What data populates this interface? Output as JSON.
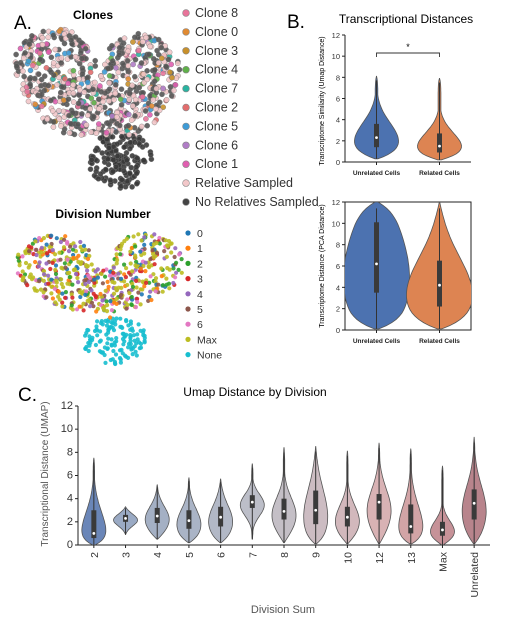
{
  "panels": {
    "a": "A.",
    "b": "B.",
    "c": "C."
  },
  "scatter_clones": {
    "title": "Clones",
    "legend": [
      {
        "label": "Clone 8",
        "color": "#e8749a"
      },
      {
        "label": "Clone 0",
        "color": "#e08a32"
      },
      {
        "label": "Clone 3",
        "color": "#c8902a"
      },
      {
        "label": "Clone 4",
        "color": "#5fb04a"
      },
      {
        "label": "Clone 7",
        "color": "#2ab3a0"
      },
      {
        "label": "Clone 2",
        "color": "#e26d6d"
      },
      {
        "label": "Clone 5",
        "color": "#3e9bd6"
      },
      {
        "label": "Clone 6",
        "color": "#b07cc6"
      },
      {
        "label": "Clone 1",
        "color": "#e05fb0"
      },
      {
        "label": "Relative Sampled",
        "color": "#f2c7c9"
      },
      {
        "label": "No Relatives Sampled",
        "color": "#444444"
      }
    ]
  },
  "scatter_division": {
    "title": "Division Number",
    "legend": [
      {
        "label": "0",
        "color": "#1f77b4"
      },
      {
        "label": "1",
        "color": "#ff7f0e"
      },
      {
        "label": "2",
        "color": "#2ca02c"
      },
      {
        "label": "3",
        "color": "#d62728"
      },
      {
        "label": "4",
        "color": "#9467bd"
      },
      {
        "label": "5",
        "color": "#8c564b"
      },
      {
        "label": "6",
        "color": "#e377c2"
      },
      {
        "label": "Max",
        "color": "#bcbd22"
      },
      {
        "label": "None",
        "color": "#17becf"
      }
    ]
  },
  "chart_data": [
    {
      "type": "violin",
      "title": "Transcriptional Distances",
      "ylabel": "Transcriptome Similarity (Umap Distance)",
      "ylim": [
        0,
        12
      ],
      "yticks": [
        "0",
        "2",
        "4",
        "6",
        "8",
        "10",
        "12"
      ],
      "categories": [
        "Unrelated Cells",
        "Related Cells"
      ],
      "colors": [
        "#4c72b0",
        "#dd8452"
      ],
      "significance": "*",
      "stats": [
        {
          "min": 0.3,
          "q1": 1.4,
          "median": 2.3,
          "q3": 3.6,
          "max": 8.1
        },
        {
          "min": 0.2,
          "q1": 0.9,
          "median": 1.5,
          "q3": 2.7,
          "max": 7.9
        }
      ]
    },
    {
      "type": "violin",
      "title": "",
      "ylabel": "Transcriptome Distance (PCA Distance)",
      "ylim": [
        0,
        12
      ],
      "yticks": [
        "0",
        "2",
        "4",
        "6",
        "8",
        "10",
        "12"
      ],
      "categories": [
        "Unrelated Cells",
        "Related Cells"
      ],
      "colors": [
        "#4c72b0",
        "#dd8452"
      ],
      "stats": [
        {
          "min": 0.1,
          "q1": 3.5,
          "median": 6.2,
          "q3": 10.1,
          "max": 12
        },
        {
          "min": 0.1,
          "q1": 2.2,
          "median": 4.2,
          "q3": 6.5,
          "max": 12
        }
      ]
    },
    {
      "type": "violin",
      "title": "Umap Distance by Division",
      "xlabel": "Division Sum",
      "ylabel": "Transcriptional Distance (UMAP)",
      "ylim": [
        0,
        12
      ],
      "yticks": [
        "0",
        "2",
        "4",
        "6",
        "8",
        "10",
        "12"
      ],
      "categories": [
        "2",
        "3",
        "4",
        "5",
        "6",
        "7",
        "8",
        "9",
        "10",
        "12",
        "13",
        "Max",
        "Unrelated"
      ],
      "colors": [
        "#6a86b8",
        "#9aaac4",
        "#a4b0c4",
        "#aab4c6",
        "#b2b8c6",
        "#bcbec8",
        "#c4bfc6",
        "#ccbcc2",
        "#d2b8bc",
        "#d8b2b4",
        "#d2a4a6",
        "#c69298",
        "#b8848c"
      ],
      "stats": [
        {
          "min": 0.0,
          "q1": 0.6,
          "median": 1.0,
          "q3": 3.0,
          "max": 7.5
        },
        {
          "min": 0.9,
          "q1": 2.0,
          "median": 2.3,
          "q3": 2.6,
          "max": 3.3
        },
        {
          "min": 0.5,
          "q1": 1.9,
          "median": 2.5,
          "q3": 3.2,
          "max": 5.2
        },
        {
          "min": 0.2,
          "q1": 1.4,
          "median": 2.1,
          "q3": 3.0,
          "max": 5.8
        },
        {
          "min": 0.2,
          "q1": 1.6,
          "median": 2.4,
          "q3": 3.3,
          "max": 5.7
        },
        {
          "min": 0.5,
          "q1": 3.2,
          "median": 3.7,
          "q3": 4.3,
          "max": 7.0
        },
        {
          "min": 0.2,
          "q1": 2.2,
          "median": 2.9,
          "q3": 4.0,
          "max": 8.4
        },
        {
          "min": 0.1,
          "q1": 1.8,
          "median": 3.0,
          "q3": 4.7,
          "max": 8.5
        },
        {
          "min": 0.1,
          "q1": 1.6,
          "median": 2.4,
          "q3": 3.3,
          "max": 8.1
        },
        {
          "min": 0.1,
          "q1": 2.2,
          "median": 3.7,
          "q3": 4.4,
          "max": 8.8
        },
        {
          "min": 0.1,
          "q1": 1.0,
          "median": 1.6,
          "q3": 3.5,
          "max": 8.3
        },
        {
          "min": 0.0,
          "q1": 0.8,
          "median": 1.3,
          "q3": 2.0,
          "max": 6.8
        },
        {
          "min": 0.1,
          "q1": 2.2,
          "median": 3.6,
          "q3": 4.8,
          "max": 9.3
        }
      ]
    }
  ]
}
